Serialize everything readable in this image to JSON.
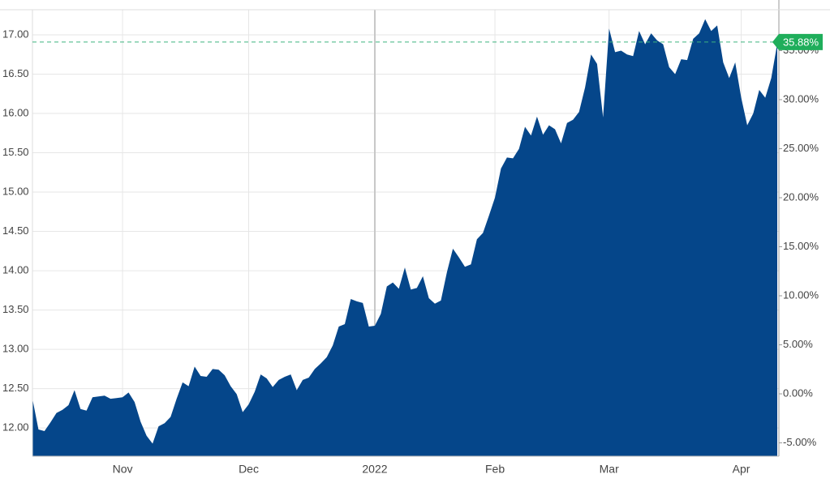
{
  "chart_data": {
    "type": "area",
    "categories": [
      null,
      null,
      null,
      null,
      null,
      null,
      null,
      null,
      null,
      null,
      null,
      null,
      null,
      null,
      null,
      "Nov",
      null,
      null,
      null,
      null,
      null,
      null,
      null,
      null,
      null,
      null,
      null,
      null,
      null,
      null,
      null,
      null,
      null,
      null,
      null,
      null,
      "Dec",
      null,
      null,
      null,
      null,
      null,
      null,
      null,
      null,
      null,
      null,
      null,
      null,
      null,
      null,
      null,
      null,
      null,
      null,
      null,
      null,
      "2022",
      null,
      null,
      null,
      null,
      null,
      null,
      null,
      null,
      null,
      null,
      null,
      null,
      null,
      null,
      null,
      null,
      null,
      null,
      null,
      "Feb",
      null,
      null,
      null,
      null,
      null,
      null,
      null,
      null,
      null,
      null,
      null,
      null,
      null,
      null,
      null,
      null,
      null,
      null,
      "Mar",
      null,
      null,
      null,
      null,
      null,
      null,
      null,
      null,
      null,
      null,
      null,
      null,
      null,
      null,
      null,
      null,
      null,
      null,
      null,
      null,
      null,
      "Apr",
      null,
      null,
      null,
      null,
      null,
      null
    ],
    "series": [
      {
        "color": "#05468a",
        "values": [
          12.37,
          11.98,
          11.96,
          12.07,
          12.19,
          12.23,
          12.29,
          12.48,
          12.24,
          12.22,
          12.39,
          12.4,
          12.41,
          12.37,
          12.38,
          12.39,
          12.45,
          12.33,
          12.08,
          11.9,
          11.8,
          12.02,
          12.06,
          12.14,
          12.37,
          12.58,
          12.53,
          12.78,
          12.66,
          12.65,
          12.75,
          12.74,
          12.67,
          12.53,
          12.43,
          12.2,
          12.3,
          12.46,
          12.68,
          12.63,
          12.52,
          12.61,
          12.65,
          12.68,
          12.48,
          12.61,
          12.64,
          12.75,
          12.82,
          12.9,
          13.05,
          13.29,
          13.32,
          13.64,
          13.61,
          13.59,
          13.29,
          13.3,
          13.45,
          13.8,
          13.85,
          13.77,
          14.04,
          13.76,
          13.78,
          13.93,
          13.65,
          13.58,
          13.62,
          13.98,
          14.28,
          14.17,
          14.05,
          14.08,
          14.4,
          14.48,
          14.7,
          14.93,
          15.3,
          15.44,
          15.43,
          15.55,
          15.83,
          15.72,
          15.96,
          15.73,
          15.85,
          15.8,
          15.62,
          15.88,
          15.92,
          16.02,
          16.33,
          16.75,
          16.63,
          15.95,
          17.08,
          16.78,
          16.8,
          16.75,
          16.73,
          17.05,
          16.88,
          17.02,
          16.93,
          16.88,
          16.59,
          16.5,
          16.69,
          16.68,
          16.95,
          17.02,
          17.2,
          17.05,
          17.12,
          16.65,
          16.45,
          16.65,
          16.2,
          15.85,
          16.0,
          16.3,
          16.2,
          16.45,
          16.89
        ]
      }
    ],
    "ylim": [
      11.64,
      17.32
    ],
    "yticks": [
      {
        "value": 12,
        "label": "12.00"
      },
      {
        "value": 12.5,
        "label": "12.50"
      },
      {
        "value": 13,
        "label": "13.00"
      },
      {
        "value": 13.5,
        "label": "13.50"
      },
      {
        "value": 14,
        "label": "14.00"
      },
      {
        "value": 14.5,
        "label": "14.50"
      },
      {
        "value": 15,
        "label": "15.00"
      },
      {
        "value": 15.5,
        "label": "15.50"
      },
      {
        "value": 16,
        "label": "16.00"
      },
      {
        "value": 16.5,
        "label": "16.50"
      },
      {
        "value": 17,
        "label": "17.00"
      }
    ],
    "y2lim": [
      -6.36,
      39.17
    ],
    "y2ticks": [
      {
        "value": -5,
        "label": "-5.00%"
      },
      {
        "value": 0,
        "label": "0.00%"
      },
      {
        "value": 5,
        "label": "5.00%"
      },
      {
        "value": 10,
        "label": "10.00%"
      },
      {
        "value": 15,
        "label": "15.00%"
      },
      {
        "value": 20,
        "label": "20.00%"
      },
      {
        "value": 25,
        "label": "25.00%"
      },
      {
        "value": 30,
        "label": "30.00%"
      },
      {
        "value": 35,
        "label": "35.00%"
      }
    ],
    "current_change": {
      "value": 35.88,
      "label": "35.88%"
    },
    "grid": true
  }
}
